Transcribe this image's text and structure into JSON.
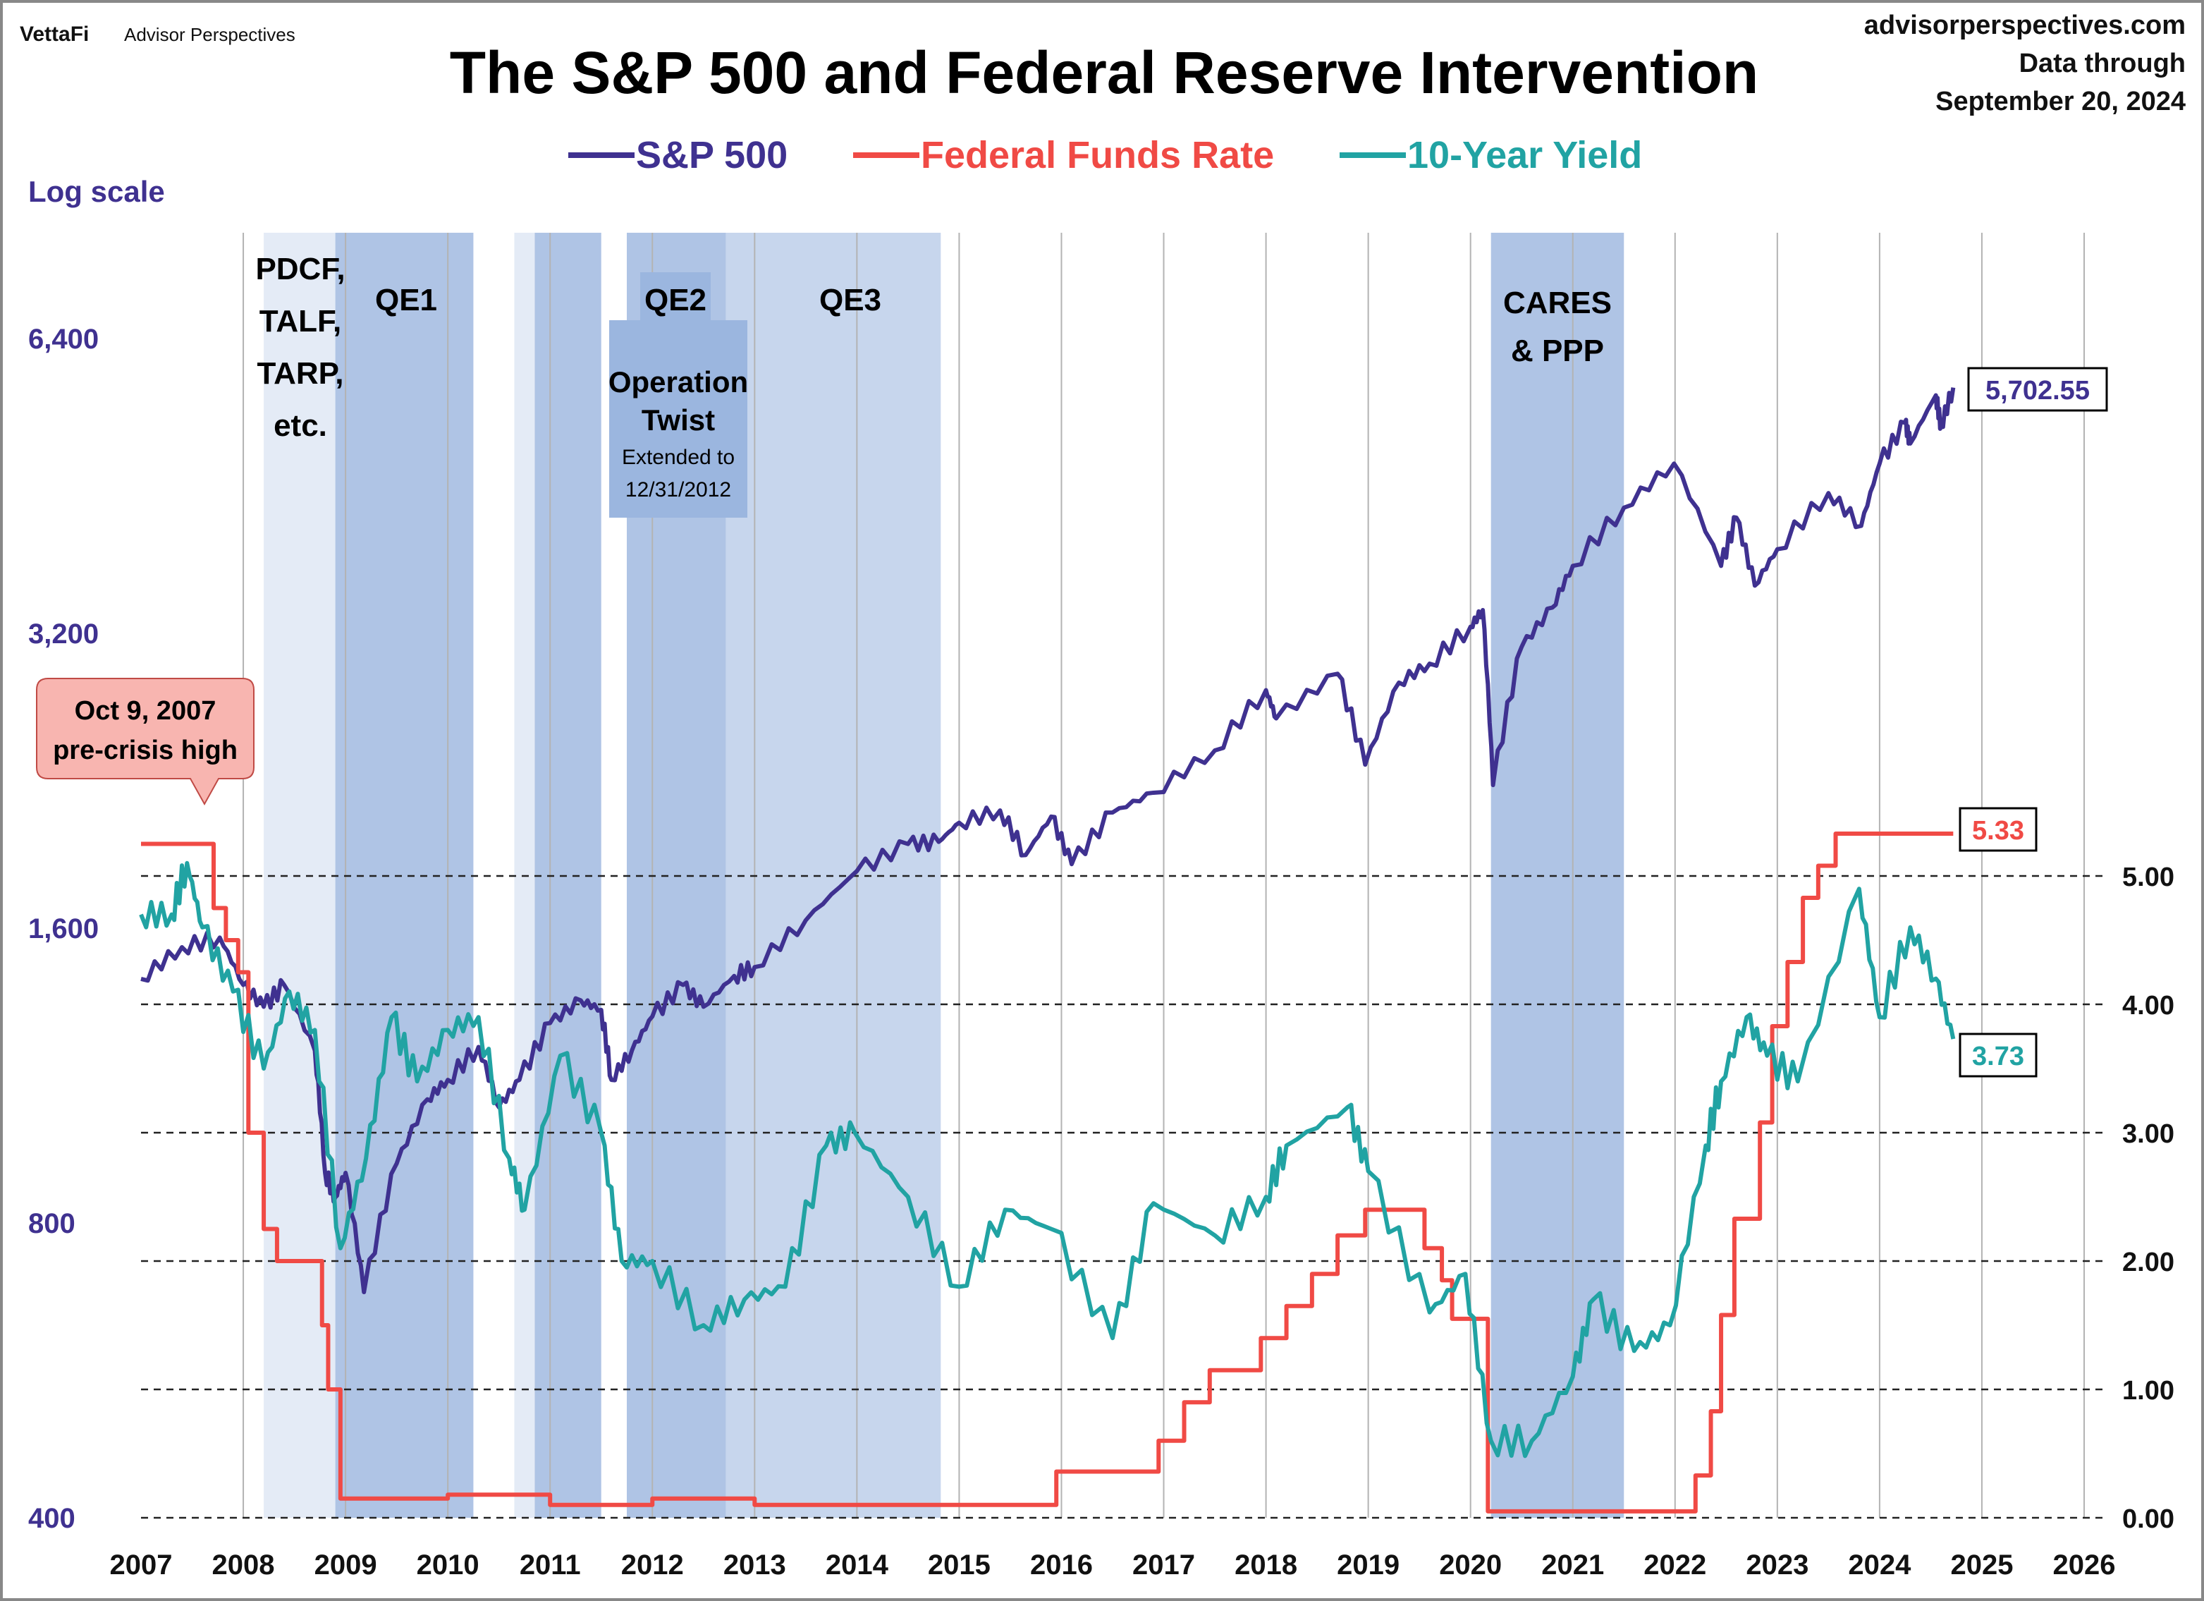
{
  "header": {
    "logo_brand": "VettaFi",
    "logo_sub": "Advisor Perspectives",
    "site": "advisorperspectives.com",
    "data_through_line1": "Data through",
    "data_through_line2": "September 20, 2024"
  },
  "chart_data": {
    "type": "line",
    "title": "The S&P 500 and Federal Reserve Intervention",
    "left_axis_label": "Log scale",
    "left_ticks": [
      "6,400",
      "3,200",
      "1,600",
      "800",
      "400"
    ],
    "left_tick_values": [
      6400,
      3200,
      1600,
      800,
      400
    ],
    "right_ticks": [
      "5.00",
      "4.00",
      "3.00",
      "2.00",
      "1.00",
      "0.00"
    ],
    "right_tick_values": [
      5,
      4,
      3,
      2,
      1,
      0
    ],
    "x_ticks": [
      "2007",
      "2008",
      "2009",
      "2010",
      "2011",
      "2012",
      "2013",
      "2014",
      "2015",
      "2016",
      "2017",
      "2018",
      "2019",
      "2020",
      "2021",
      "2022",
      "2023",
      "2024",
      "2025",
      "2026"
    ],
    "xlim": [
      2007,
      2026
    ],
    "ylim_left": [
      400,
      12800
    ],
    "ylim_right": [
      0,
      7.6
    ],
    "legend": [
      {
        "name": "S&P 500",
        "color": "#3f3190"
      },
      {
        "name": "Federal Funds Rate",
        "color": "#f04a45"
      },
      {
        "name": "10-Year Yield",
        "color": "#21a3a3"
      }
    ],
    "series": [
      {
        "name": "S&P 500",
        "axis": "left",
        "color": "#3f3190",
        "last_label": "5,702.55",
        "points": [
          [
            2007.0,
            1420
          ],
          [
            2007.4,
            1530
          ],
          [
            2007.77,
            1565
          ],
          [
            2008.0,
            1400
          ],
          [
            2008.2,
            1330
          ],
          [
            2008.4,
            1400
          ],
          [
            2008.7,
            1200
          ],
          [
            2008.8,
            900
          ],
          [
            2008.9,
            850
          ],
          [
            2009.0,
            900
          ],
          [
            2009.18,
            680
          ],
          [
            2009.5,
            920
          ],
          [
            2009.8,
            1070
          ],
          [
            2010.0,
            1120
          ],
          [
            2010.3,
            1210
          ],
          [
            2010.5,
            1050
          ],
          [
            2010.7,
            1120
          ],
          [
            2011.0,
            1280
          ],
          [
            2011.3,
            1350
          ],
          [
            2011.5,
            1320
          ],
          [
            2011.6,
            1120
          ],
          [
            2011.8,
            1200
          ],
          [
            2012.0,
            1300
          ],
          [
            2012.3,
            1400
          ],
          [
            2012.5,
            1330
          ],
          [
            2012.8,
            1430
          ],
          [
            2013.0,
            1460
          ],
          [
            2013.5,
            1630
          ],
          [
            2014.0,
            1830
          ],
          [
            2014.5,
            1950
          ],
          [
            2014.8,
            1960
          ],
          [
            2015.0,
            2050
          ],
          [
            2015.4,
            2110
          ],
          [
            2015.65,
            1900
          ],
          [
            2015.9,
            2080
          ],
          [
            2016.1,
            1860
          ],
          [
            2016.5,
            2100
          ],
          [
            2016.9,
            2200
          ],
          [
            2017.5,
            2430
          ],
          [
            2018.0,
            2800
          ],
          [
            2018.1,
            2620
          ],
          [
            2018.7,
            2910
          ],
          [
            2018.97,
            2350
          ],
          [
            2019.3,
            2850
          ],
          [
            2019.6,
            2980
          ],
          [
            2020.0,
            3250
          ],
          [
            2020.12,
            3380
          ],
          [
            2020.22,
            2240
          ],
          [
            2020.5,
            3100
          ],
          [
            2020.8,
            3400
          ],
          [
            2021.0,
            3750
          ],
          [
            2021.5,
            4300
          ],
          [
            2021.99,
            4770
          ],
          [
            2022.45,
            3750
          ],
          [
            2022.6,
            4200
          ],
          [
            2022.78,
            3580
          ],
          [
            2023.0,
            3900
          ],
          [
            2023.5,
            4450
          ],
          [
            2023.82,
            4120
          ],
          [
            2024.0,
            4770
          ],
          [
            2024.25,
            5250
          ],
          [
            2024.3,
            5000
          ],
          [
            2024.55,
            5600
          ],
          [
            2024.6,
            5200
          ],
          [
            2024.72,
            5702.55
          ]
        ]
      },
      {
        "name": "Federal Funds Rate",
        "axis": "right",
        "color": "#f04a45",
        "last_label": "5.33",
        "step": true,
        "points": [
          [
            2007.0,
            5.25
          ],
          [
            2007.71,
            4.75
          ],
          [
            2007.83,
            4.5
          ],
          [
            2007.95,
            4.25
          ],
          [
            2008.05,
            3.0
          ],
          [
            2008.2,
            2.25
          ],
          [
            2008.33,
            2.0
          ],
          [
            2008.77,
            1.5
          ],
          [
            2008.83,
            1.0
          ],
          [
            2008.95,
            0.15
          ],
          [
            2010.0,
            0.18
          ],
          [
            2011.0,
            0.1
          ],
          [
            2012.0,
            0.15
          ],
          [
            2013.0,
            0.1
          ],
          [
            2015.95,
            0.36
          ],
          [
            2016.95,
            0.6
          ],
          [
            2017.2,
            0.9
          ],
          [
            2017.45,
            1.15
          ],
          [
            2017.95,
            1.4
          ],
          [
            2018.2,
            1.65
          ],
          [
            2018.45,
            1.9
          ],
          [
            2018.7,
            2.2
          ],
          [
            2018.97,
            2.4
          ],
          [
            2019.55,
            2.1
          ],
          [
            2019.72,
            1.85
          ],
          [
            2019.82,
            1.55
          ],
          [
            2020.17,
            0.05
          ],
          [
            2022.2,
            0.33
          ],
          [
            2022.35,
            0.83
          ],
          [
            2022.45,
            1.58
          ],
          [
            2022.58,
            2.33
          ],
          [
            2022.83,
            3.08
          ],
          [
            2022.95,
            3.83
          ],
          [
            2023.1,
            4.33
          ],
          [
            2023.25,
            4.83
          ],
          [
            2023.4,
            5.08
          ],
          [
            2023.57,
            5.33
          ],
          [
            2024.72,
            5.33
          ]
        ]
      },
      {
        "name": "10-Year Yield",
        "axis": "right",
        "color": "#21a3a3",
        "last_label": "3.73",
        "points": [
          [
            2007.0,
            4.7
          ],
          [
            2007.3,
            4.7
          ],
          [
            2007.45,
            5.1
          ],
          [
            2007.6,
            4.6
          ],
          [
            2007.9,
            4.1
          ],
          [
            2008.2,
            3.5
          ],
          [
            2008.45,
            4.1
          ],
          [
            2008.7,
            3.8
          ],
          [
            2008.95,
            2.1
          ],
          [
            2009.2,
            2.8
          ],
          [
            2009.45,
            3.9
          ],
          [
            2009.7,
            3.4
          ],
          [
            2010.0,
            3.8
          ],
          [
            2010.3,
            3.9
          ],
          [
            2010.6,
            2.8
          ],
          [
            2010.75,
            2.4
          ],
          [
            2011.1,
            3.6
          ],
          [
            2011.5,
            3.0
          ],
          [
            2011.7,
            2.0
          ],
          [
            2012.0,
            2.0
          ],
          [
            2012.5,
            1.5
          ],
          [
            2012.9,
            1.7
          ],
          [
            2013.3,
            1.8
          ],
          [
            2013.7,
            2.9
          ],
          [
            2013.98,
            3.0
          ],
          [
            2014.5,
            2.5
          ],
          [
            2015.0,
            1.8
          ],
          [
            2015.45,
            2.4
          ],
          [
            2015.9,
            2.25
          ],
          [
            2016.5,
            1.4
          ],
          [
            2016.9,
            2.45
          ],
          [
            2017.5,
            2.2
          ],
          [
            2018.0,
            2.5
          ],
          [
            2018.2,
            2.9
          ],
          [
            2018.8,
            3.2
          ],
          [
            2019.0,
            2.7
          ],
          [
            2019.6,
            1.6
          ],
          [
            2019.95,
            1.9
          ],
          [
            2020.2,
            0.6
          ],
          [
            2020.6,
            0.6
          ],
          [
            2021.0,
            1.1
          ],
          [
            2021.2,
            1.7
          ],
          [
            2021.6,
            1.3
          ],
          [
            2021.95,
            1.5
          ],
          [
            2022.3,
            2.9
          ],
          [
            2022.45,
            3.4
          ],
          [
            2022.7,
            3.9
          ],
          [
            2022.9,
            3.6
          ],
          [
            2023.2,
            3.4
          ],
          [
            2023.8,
            4.9
          ],
          [
            2024.0,
            3.9
          ],
          [
            2024.3,
            4.6
          ],
          [
            2024.55,
            4.2
          ],
          [
            2024.72,
            3.73
          ]
        ]
      }
    ],
    "shaded_periods": [
      {
        "label": "PDCF,\nTALF,\nTARP,\netc.",
        "start": 2008.2,
        "end": 2008.9,
        "color": "#e4ebf6"
      },
      {
        "label": "QE1",
        "start": 2008.9,
        "end": 2010.25,
        "color": "#afc4e5"
      },
      {
        "label": "",
        "start": 2010.65,
        "end": 2010.85,
        "color": "#e4ebf6"
      },
      {
        "label": "",
        "start": 2010.85,
        "end": 2011.5,
        "color": "#afc4e5"
      },
      {
        "label": "",
        "start": 2011.75,
        "end": 2012.72,
        "color": "#afc4e5"
      },
      {
        "label": "QE3",
        "start": 2012.72,
        "end": 2014.82,
        "color": "#c7d6ed"
      },
      {
        "label": "CARES\n& PPP",
        "start": 2020.2,
        "end": 2021.5,
        "color": "#afc4e5"
      }
    ],
    "annotations": {
      "qe2": "QE2",
      "op_twist_1": "Operation",
      "op_twist_2": "Twist",
      "op_twist_3": "Extended  to",
      "op_twist_4": "12/31/2012",
      "peak_1": "Oct 9, 2007",
      "peak_2": "pre-crisis high"
    }
  }
}
